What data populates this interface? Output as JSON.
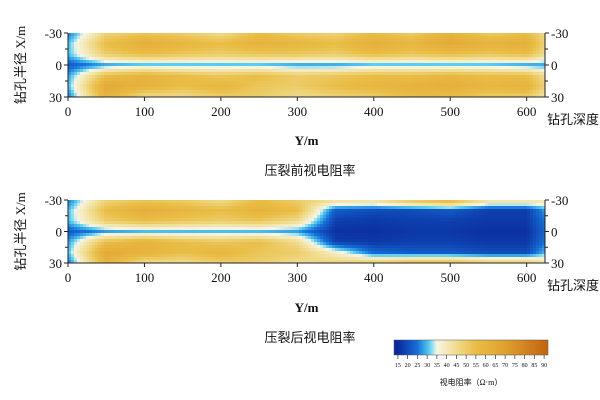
{
  "chart_data": [
    {
      "type": "heatmap",
      "title": "压裂前视电阻率",
      "xlabel": "Y/m",
      "ylabel": "钻孔半径 X/m",
      "right_label": "钻孔深度",
      "xlim": [
        0,
        624
      ],
      "ylim": [
        -30,
        30
      ],
      "x_ticks": [
        0,
        100,
        200,
        300,
        400,
        500,
        600
      ],
      "y_ticks": [
        -30,
        0,
        30
      ],
      "grid_x": [
        0,
        50,
        100,
        150,
        200,
        250,
        300,
        350,
        400,
        450,
        500,
        550,
        600,
        624
      ],
      "grid_y": [
        -30,
        -20,
        -10,
        0,
        10,
        20,
        30
      ],
      "values": [
        [
          25,
          48,
          52,
          50,
          45,
          55,
          50,
          48,
          55,
          50,
          60,
          50,
          55,
          45
        ],
        [
          30,
          55,
          62,
          58,
          55,
          60,
          58,
          55,
          62,
          58,
          65,
          60,
          62,
          48
        ],
        [
          30,
          50,
          55,
          52,
          50,
          52,
          52,
          50,
          55,
          52,
          55,
          52,
          55,
          45
        ],
        [
          22,
          28,
          30,
          30,
          30,
          30,
          28,
          28,
          30,
          30,
          30,
          30,
          28,
          28
        ],
        [
          28,
          55,
          60,
          55,
          52,
          55,
          50,
          52,
          55,
          55,
          58,
          55,
          55,
          45
        ],
        [
          30,
          65,
          60,
          55,
          58,
          52,
          50,
          55,
          58,
          60,
          62,
          58,
          60,
          48
        ],
        [
          25,
          60,
          45,
          45,
          50,
          50,
          45,
          48,
          50,
          55,
          55,
          50,
          50,
          42
        ]
      ]
    },
    {
      "type": "heatmap",
      "title": "压裂后视电阻率",
      "xlabel": "Y/m",
      "ylabel": "钻孔半径 X/m",
      "right_label": "钻孔深度",
      "xlim": [
        0,
        624
      ],
      "ylim": [
        -30,
        30
      ],
      "x_ticks": [
        0,
        100,
        200,
        300,
        400,
        500,
        600
      ],
      "y_ticks": [
        -30,
        0,
        30
      ],
      "grid_x": [
        0,
        50,
        100,
        150,
        200,
        250,
        300,
        350,
        400,
        450,
        500,
        550,
        600,
        624
      ],
      "grid_y": [
        -30,
        -20,
        -10,
        0,
        10,
        20,
        30
      ],
      "values": [
        [
          25,
          48,
          52,
          50,
          45,
          55,
          50,
          45,
          45,
          55,
          60,
          45,
          45,
          42
        ],
        [
          30,
          55,
          62,
          58,
          55,
          60,
          55,
          22,
          20,
          20,
          22,
          18,
          18,
          28
        ],
        [
          30,
          50,
          55,
          52,
          50,
          52,
          45,
          18,
          17,
          18,
          18,
          17,
          17,
          25
        ],
        [
          22,
          28,
          30,
          30,
          30,
          30,
          28,
          16,
          16,
          17,
          17,
          16,
          16,
          24
        ],
        [
          28,
          55,
          60,
          55,
          52,
          55,
          45,
          18,
          17,
          18,
          18,
          17,
          17,
          25
        ],
        [
          30,
          65,
          60,
          55,
          58,
          52,
          50,
          38,
          24,
          22,
          22,
          20,
          20,
          30
        ],
        [
          25,
          60,
          45,
          45,
          50,
          50,
          45,
          48,
          50,
          55,
          55,
          50,
          50,
          42
        ]
      ]
    }
  ],
  "colorbar": {
    "label": "视电阻率（Ω·m）",
    "ticks": [
      15,
      20,
      25,
      30,
      35,
      40,
      45,
      50,
      55,
      60,
      65,
      70,
      75,
      80,
      85,
      90
    ],
    "stops": [
      {
        "v": 15,
        "c": "#0a2a9c"
      },
      {
        "v": 25,
        "c": "#1670d8"
      },
      {
        "v": 31,
        "c": "#55cdf2"
      },
      {
        "v": 35,
        "c": "#f6f5e6"
      },
      {
        "v": 45,
        "c": "#f0dc8c"
      },
      {
        "v": 55,
        "c": "#e9bd45"
      },
      {
        "v": 70,
        "c": "#e0a030"
      },
      {
        "v": 90,
        "c": "#c46810"
      }
    ]
  }
}
